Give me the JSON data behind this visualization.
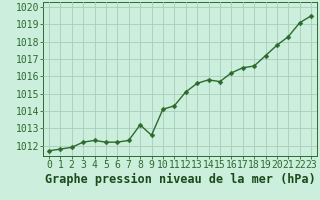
{
  "x": [
    0,
    1,
    2,
    3,
    4,
    5,
    6,
    7,
    8,
    9,
    10,
    11,
    12,
    13,
    14,
    15,
    16,
    17,
    18,
    19,
    20,
    21,
    22,
    23
  ],
  "y": [
    1011.7,
    1011.8,
    1011.9,
    1012.2,
    1012.3,
    1012.2,
    1012.2,
    1012.3,
    1013.2,
    1012.6,
    1014.1,
    1014.3,
    1015.1,
    1015.6,
    1015.8,
    1015.7,
    1016.2,
    1016.5,
    1016.6,
    1017.2,
    1017.8,
    1018.3,
    1019.1,
    1019.5
  ],
  "line_color": "#2d6a2d",
  "marker": "D",
  "marker_size": 2.5,
  "bg_color": "#cceedd",
  "grid_color": "#aaccbb",
  "title": "Graphe pression niveau de la mer (hPa)",
  "title_color": "#1a4a1a",
  "ylabel_values": [
    1012,
    1013,
    1014,
    1015,
    1016,
    1017,
    1018,
    1019,
    1020
  ],
  "xlim": [
    -0.5,
    23.5
  ],
  "ylim": [
    1011.4,
    1020.3
  ],
  "tick_color": "#2d6a2d",
  "tick_label_color": "#2d6a2d",
  "title_fontsize": 8.5,
  "tick_fontsize": 7,
  "linewidth": 1.0
}
